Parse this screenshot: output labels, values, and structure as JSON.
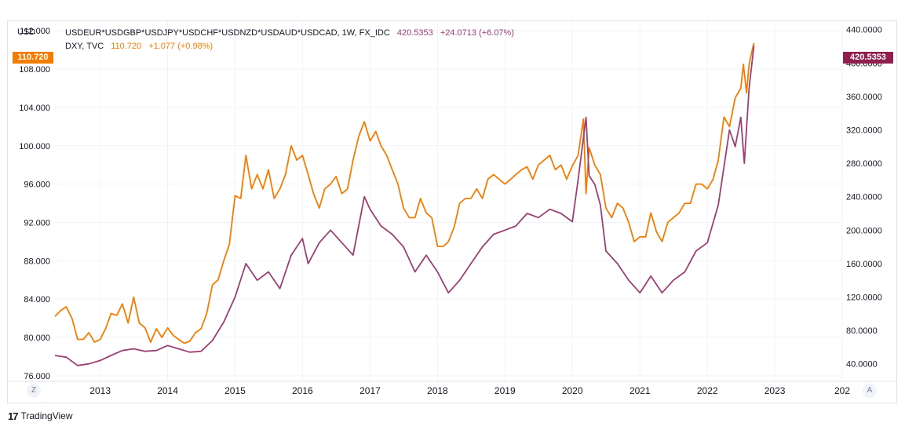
{
  "legend": {
    "main_symbol": "USDEUR*USDGBP*USDJPY*USDCHF*USDNZD*USDAUD*USDCAD, 1W, FX_IDC",
    "main_value": "420.5353",
    "main_change": "+24.0713 (+6.07%)",
    "compare_symbol": "DXY, TVC",
    "compare_value": "110.720",
    "compare_change": "+1.077 (+0.98%)"
  },
  "left_axis": {
    "unit": "USD",
    "tag": "110.720",
    "ticks": [
      "112.000",
      "108.000",
      "104.000",
      "100.000",
      "96.000",
      "92.000",
      "88.000",
      "84.000",
      "80.000",
      "76.000"
    ]
  },
  "right_axis": {
    "tag": "420.5353",
    "ticks": [
      "440.0000",
      "400.0000",
      "360.0000",
      "320.0000",
      "280.0000",
      "240.0000",
      "200.0000",
      "160.0000",
      "120.0000",
      "80.0000",
      "40.0000"
    ]
  },
  "time_axis": {
    "ticks": [
      "2013",
      "2014",
      "2015",
      "2016",
      "2017",
      "2018",
      "2019",
      "2020",
      "2021",
      "2022",
      "2023",
      "202"
    ]
  },
  "buttons": {
    "log_scale": "Z",
    "auto_scale": "A"
  },
  "brand": {
    "mark": "17",
    "name": "TradingView"
  },
  "colors": {
    "dxy": "#f57c00",
    "basket": "#9c3f73",
    "basket_tag": "#8e1f4f",
    "grid": "#f0f3fa"
  },
  "chart_data": {
    "type": "line",
    "x_range": [
      "2012-05",
      "2024-01"
    ],
    "y_left_range": [
      75.5,
      113
    ],
    "y_right_range": [
      20,
      450
    ],
    "series": [
      {
        "name": "DXY, TVC",
        "axis": "left",
        "points": [
          [
            "2012-05-01",
            82.2
          ],
          [
            "2012-06-01",
            82.8
          ],
          [
            "2012-07-01",
            83.2
          ],
          [
            "2012-08-01",
            82.0
          ],
          [
            "2012-09-01",
            79.8
          ],
          [
            "2012-10-01",
            79.8
          ],
          [
            "2012-11-01",
            80.5
          ],
          [
            "2012-12-01",
            79.5
          ],
          [
            "2013-01-01",
            79.8
          ],
          [
            "2013-02-01",
            81.0
          ],
          [
            "2013-03-01",
            82.5
          ],
          [
            "2013-04-01",
            82.3
          ],
          [
            "2013-05-01",
            83.5
          ],
          [
            "2013-06-01",
            81.5
          ],
          [
            "2013-07-01",
            84.2
          ],
          [
            "2013-08-01",
            81.5
          ],
          [
            "2013-09-01",
            81.0
          ],
          [
            "2013-10-01",
            79.5
          ],
          [
            "2013-11-01",
            80.9
          ],
          [
            "2013-12-01",
            80.0
          ],
          [
            "2014-01-01",
            81.0
          ],
          [
            "2014-02-01",
            80.2
          ],
          [
            "2014-03-01",
            79.8
          ],
          [
            "2014-04-01",
            79.4
          ],
          [
            "2014-05-01",
            79.6
          ],
          [
            "2014-06-01",
            80.5
          ],
          [
            "2014-07-01",
            80.9
          ],
          [
            "2014-08-01",
            82.5
          ],
          [
            "2014-09-01",
            85.5
          ],
          [
            "2014-10-01",
            86.0
          ],
          [
            "2014-11-01",
            88.0
          ],
          [
            "2014-12-01",
            89.7
          ],
          [
            "2015-01-01",
            94.8
          ],
          [
            "2015-02-01",
            94.5
          ],
          [
            "2015-03-01",
            99.0
          ],
          [
            "2015-04-01",
            95.5
          ],
          [
            "2015-05-01",
            97.0
          ],
          [
            "2015-06-01",
            95.5
          ],
          [
            "2015-07-01",
            97.5
          ],
          [
            "2015-08-01",
            94.5
          ],
          [
            "2015-09-01",
            95.5
          ],
          [
            "2015-10-01",
            97.0
          ],
          [
            "2015-11-01",
            100.0
          ],
          [
            "2015-12-01",
            98.5
          ],
          [
            "2016-01-01",
            99.0
          ],
          [
            "2016-02-01",
            97.0
          ],
          [
            "2016-03-01",
            95.0
          ],
          [
            "2016-04-01",
            93.5
          ],
          [
            "2016-05-01",
            95.5
          ],
          [
            "2016-06-01",
            96.0
          ],
          [
            "2016-07-01",
            96.8
          ],
          [
            "2016-08-01",
            95.0
          ],
          [
            "2016-09-01",
            95.5
          ],
          [
            "2016-10-01",
            98.5
          ],
          [
            "2016-11-01",
            101.0
          ],
          [
            "2016-12-01",
            102.5
          ],
          [
            "2017-01-01",
            100.5
          ],
          [
            "2017-02-01",
            101.5
          ],
          [
            "2017-03-01",
            100.0
          ],
          [
            "2017-04-01",
            99.0
          ],
          [
            "2017-05-01",
            97.5
          ],
          [
            "2017-06-01",
            96.0
          ],
          [
            "2017-07-01",
            93.5
          ],
          [
            "2017-08-01",
            92.5
          ],
          [
            "2017-09-01",
            92.5
          ],
          [
            "2017-10-01",
            94.5
          ],
          [
            "2017-11-01",
            93.0
          ],
          [
            "2017-12-01",
            92.5
          ],
          [
            "2018-01-01",
            89.5
          ],
          [
            "2018-02-01",
            89.5
          ],
          [
            "2018-03-01",
            90.0
          ],
          [
            "2018-04-01",
            91.5
          ],
          [
            "2018-05-01",
            94.0
          ],
          [
            "2018-06-01",
            94.5
          ],
          [
            "2018-07-01",
            94.5
          ],
          [
            "2018-08-01",
            95.5
          ],
          [
            "2018-09-01",
            94.5
          ],
          [
            "2018-10-01",
            96.5
          ],
          [
            "2018-11-01",
            97.0
          ],
          [
            "2018-12-01",
            96.5
          ],
          [
            "2019-01-01",
            96.0
          ],
          [
            "2019-02-01",
            96.5
          ],
          [
            "2019-03-01",
            97.0
          ],
          [
            "2019-04-01",
            97.5
          ],
          [
            "2019-05-01",
            97.8
          ],
          [
            "2019-06-01",
            96.5
          ],
          [
            "2019-07-01",
            98.0
          ],
          [
            "2019-08-01",
            98.5
          ],
          [
            "2019-09-01",
            99.0
          ],
          [
            "2019-10-01",
            97.5
          ],
          [
            "2019-11-01",
            98.0
          ],
          [
            "2019-12-01",
            96.5
          ],
          [
            "2020-01-01",
            97.9
          ],
          [
            "2020-02-01",
            99.0
          ],
          [
            "2020-03-01",
            102.8
          ],
          [
            "2020-03-15",
            95.0
          ],
          [
            "2020-04-01",
            99.8
          ],
          [
            "2020-05-01",
            98.0
          ],
          [
            "2020-06-01",
            97.0
          ],
          [
            "2020-07-01",
            93.5
          ],
          [
            "2020-08-01",
            92.5
          ],
          [
            "2020-09-01",
            94.0
          ],
          [
            "2020-10-01",
            93.5
          ],
          [
            "2020-11-01",
            92.0
          ],
          [
            "2020-12-01",
            90.0
          ],
          [
            "2021-01-01",
            90.5
          ],
          [
            "2021-02-01",
            90.5
          ],
          [
            "2021-03-01",
            93.0
          ],
          [
            "2021-04-01",
            91.0
          ],
          [
            "2021-05-01",
            90.0
          ],
          [
            "2021-06-01",
            92.0
          ],
          [
            "2021-07-01",
            92.5
          ],
          [
            "2021-08-01",
            93.0
          ],
          [
            "2021-09-01",
            94.0
          ],
          [
            "2021-10-01",
            94.0
          ],
          [
            "2021-11-01",
            96.0
          ],
          [
            "2021-12-01",
            96.0
          ],
          [
            "2022-01-01",
            95.5
          ],
          [
            "2022-02-01",
            96.5
          ],
          [
            "2022-03-01",
            98.5
          ],
          [
            "2022-04-01",
            103.0
          ],
          [
            "2022-05-01",
            102.0
          ],
          [
            "2022-06-01",
            105.0
          ],
          [
            "2022-07-01",
            106.0
          ],
          [
            "2022-07-15",
            108.5
          ],
          [
            "2022-08-01",
            105.5
          ],
          [
            "2022-08-15",
            108.5
          ],
          [
            "2022-09-01",
            110.0
          ],
          [
            "2022-09-10",
            110.72
          ]
        ]
      },
      {
        "name": "USDEUR*USDGBP*USDJPY*USDCHF*USDNZD*USDAUD*USDCAD, 1W, FX_IDC",
        "axis": "right",
        "points": [
          [
            "2012-05-01",
            50.0
          ],
          [
            "2012-07-01",
            48.0
          ],
          [
            "2012-09-01",
            38.0
          ],
          [
            "2012-11-01",
            40.0
          ],
          [
            "2013-01-01",
            44.0
          ],
          [
            "2013-03-01",
            50.0
          ],
          [
            "2013-05-01",
            56.0
          ],
          [
            "2013-07-01",
            58.0
          ],
          [
            "2013-09-01",
            55.0
          ],
          [
            "2013-11-01",
            56.0
          ],
          [
            "2014-01-01",
            62.0
          ],
          [
            "2014-03-01",
            58.0
          ],
          [
            "2014-05-01",
            54.0
          ],
          [
            "2014-07-01",
            55.0
          ],
          [
            "2014-09-01",
            68.0
          ],
          [
            "2014-11-01",
            90.0
          ],
          [
            "2015-01-01",
            120.0
          ],
          [
            "2015-03-01",
            160.0
          ],
          [
            "2015-05-01",
            140.0
          ],
          [
            "2015-07-01",
            150.0
          ],
          [
            "2015-09-01",
            130.0
          ],
          [
            "2015-11-01",
            170.0
          ],
          [
            "2016-01-01",
            190.0
          ],
          [
            "2016-02-01",
            160.0
          ],
          [
            "2016-04-01",
            185.0
          ],
          [
            "2016-06-01",
            200.0
          ],
          [
            "2016-08-01",
            185.0
          ],
          [
            "2016-10-01",
            170.0
          ],
          [
            "2016-12-01",
            240.0
          ],
          [
            "2017-01-01",
            225.0
          ],
          [
            "2017-03-01",
            205.0
          ],
          [
            "2017-05-01",
            195.0
          ],
          [
            "2017-07-01",
            180.0
          ],
          [
            "2017-09-01",
            150.0
          ],
          [
            "2017-11-01",
            170.0
          ],
          [
            "2018-01-01",
            150.0
          ],
          [
            "2018-03-01",
            125.0
          ],
          [
            "2018-05-01",
            140.0
          ],
          [
            "2018-07-01",
            160.0
          ],
          [
            "2018-09-01",
            180.0
          ],
          [
            "2018-11-01",
            195.0
          ],
          [
            "2019-01-01",
            200.0
          ],
          [
            "2019-03-01",
            205.0
          ],
          [
            "2019-05-01",
            220.0
          ],
          [
            "2019-07-01",
            215.0
          ],
          [
            "2019-09-01",
            225.0
          ],
          [
            "2019-11-01",
            220.0
          ],
          [
            "2020-01-01",
            210.0
          ],
          [
            "2020-02-01",
            260.0
          ],
          [
            "2020-03-15",
            335.0
          ],
          [
            "2020-04-01",
            265.0
          ],
          [
            "2020-05-01",
            255.0
          ],
          [
            "2020-06-01",
            230.0
          ],
          [
            "2020-07-01",
            175.0
          ],
          [
            "2020-09-01",
            160.0
          ],
          [
            "2020-11-01",
            140.0
          ],
          [
            "2021-01-01",
            125.0
          ],
          [
            "2021-03-01",
            145.0
          ],
          [
            "2021-05-01",
            125.0
          ],
          [
            "2021-07-01",
            140.0
          ],
          [
            "2021-09-01",
            150.0
          ],
          [
            "2021-11-01",
            175.0
          ],
          [
            "2022-01-01",
            185.0
          ],
          [
            "2022-03-01",
            230.0
          ],
          [
            "2022-05-01",
            320.0
          ],
          [
            "2022-06-01",
            300.0
          ],
          [
            "2022-07-01",
            335.0
          ],
          [
            "2022-07-20",
            280.0
          ],
          [
            "2022-08-15",
            370.0
          ],
          [
            "2022-09-10",
            420.5353
          ]
        ]
      }
    ]
  }
}
